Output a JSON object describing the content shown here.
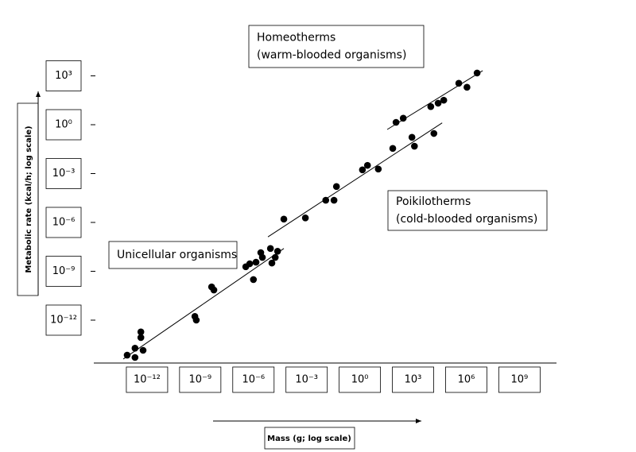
{
  "chart_data": {
    "type": "scatter",
    "x_label": "Mass (g; log scale)",
    "y_label": "Metabolic rate (kcal/h; log scale)",
    "log_scale": true,
    "color": "#000000",
    "xlim": [
      1e-15,
      100000000000.0
    ],
    "ylim": [
      1e-15,
      100000.0
    ],
    "xticks": [
      {
        "value": 1e-12,
        "label": "10⁻¹²"
      },
      {
        "value": 1e-09,
        "label": "10⁻⁹"
      },
      {
        "value": 1e-06,
        "label": "10⁻⁶"
      },
      {
        "value": 0.001,
        "label": "10⁻³"
      },
      {
        "value": 1,
        "label": "10⁰"
      },
      {
        "value": 1000.0,
        "label": "10³"
      },
      {
        "value": 1000000.0,
        "label": "10⁶"
      },
      {
        "value": 1000000000.0,
        "label": "10⁹"
      }
    ],
    "yticks": [
      {
        "value": 1e-12,
        "label": "10⁻¹²"
      },
      {
        "value": 1e-09,
        "label": "10⁻⁹"
      },
      {
        "value": 1e-06,
        "label": "10⁻⁶"
      },
      {
        "value": 0.001,
        "label": "10⁻³"
      },
      {
        "value": 1,
        "label": "10⁰"
      },
      {
        "value": 1000.0,
        "label": "10³"
      }
    ],
    "x": [
      7.6e-14,
      2.1e-13,
      2.1e-13,
      6e-13,
      4.5e-13,
      4.5e-13,
      5e-10,
      6e-10,
      4.4e-09,
      5.9e-09,
      3.7e-07,
      6.2e-07,
      1e-06,
      1.4e-06,
      2.6e-06,
      3.2e-06,
      9.1e-06,
      1.1e-05,
      1.7e-05,
      2.3e-05,
      5.2e-05,
      0.00085,
      0.012,
      0.035,
      0.048,
      1.4,
      2.7,
      11,
      72,
      110,
      280,
      870,
      1200,
      10000,
      15000,
      26000,
      54000,
      380000,
      1100000,
      4100000
    ],
    "values": [
      7.1e-15,
      1.9e-14,
      5.1e-15,
      1.4e-14,
      8.5e-14,
      1.9e-13,
      1.7e-12,
      1e-12,
      1.1e-10,
      7.1e-11,
      1.9e-09,
      2.9e-09,
      3.1e-10,
      3.6e-09,
      1.4e-08,
      7.1e-09,
      2.5e-08,
      3.2e-09,
      7.1e-09,
      1.7e-08,
      1.6e-06,
      1.9e-06,
      2.3e-05,
      2.3e-05,
      0.00016,
      0.0017,
      0.0032,
      0.0019,
      0.035,
      1.4,
      2.5,
      0.17,
      0.048,
      13,
      0.29,
      21,
      32,
      350,
      200,
      1500
    ],
    "trend_lines": [
      {
        "x": [
          4.6e-14,
          5.2e-05
        ],
        "y": [
          4.1e-15,
          2.5e-08
        ]
      },
      {
        "x": [
          6.6e-06,
          44000
        ],
        "y": [
          1.3e-07,
          1.3
        ]
      },
      {
        "x": [
          35,
          8500000.0
        ],
        "y": [
          0.51,
          2100
        ]
      }
    ],
    "annotations": [
      {
        "lines": [
          "Homeotherms",
          "(warm-blooded organisms)"
        ]
      },
      {
        "lines": [
          "Poikilotherms",
          "(cold-blooded organisms)"
        ]
      },
      {
        "lines": [
          "Unicellular organisms"
        ]
      }
    ]
  }
}
